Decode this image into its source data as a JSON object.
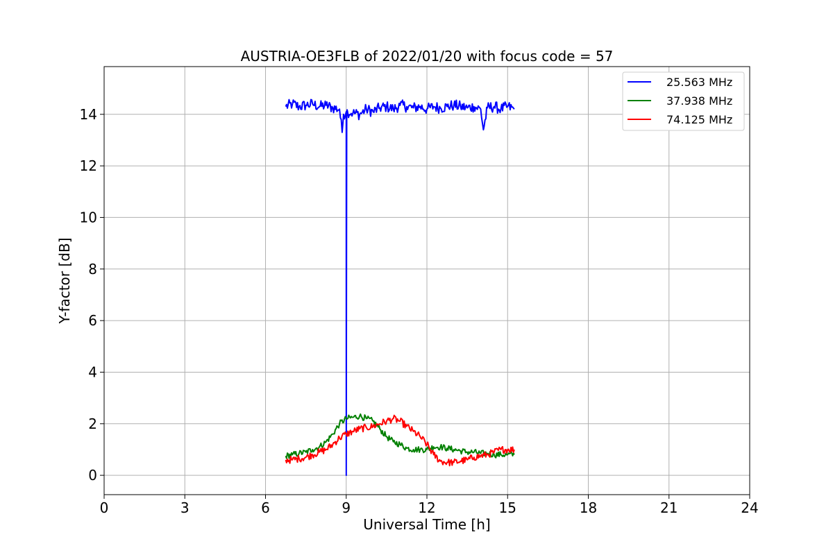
{
  "chart_data": {
    "type": "line",
    "title": "AUSTRIA-OE3FLB of 2022/01/20 with focus code = 57",
    "xlabel": "Universal Time [h]",
    "ylabel": "Y-factor [dB]",
    "xlim": [
      0,
      24
    ],
    "ylim": [
      -0.75,
      15.85
    ],
    "xticks": [
      0,
      3,
      6,
      9,
      12,
      15,
      18,
      21,
      24
    ],
    "yticks": [
      0,
      2,
      4,
      6,
      8,
      10,
      12,
      14
    ],
    "xtick_labels": [
      "0",
      "3",
      "6",
      "9",
      "12",
      "15",
      "18",
      "21",
      "24"
    ],
    "ytick_labels": [
      "0",
      "2",
      "4",
      "6",
      "8",
      "10",
      "12",
      "14"
    ],
    "grid": true,
    "legend_position": "top-right",
    "series": [
      {
        "name": "25.563 MHz",
        "color": "#0000ff",
        "x": [
          6.75,
          7.0,
          7.25,
          7.5,
          7.75,
          8.0,
          8.25,
          8.5,
          8.75,
          8.85,
          8.9,
          9.0,
          9.0,
          9.02,
          9.05,
          9.25,
          9.5,
          9.75,
          10.0,
          10.25,
          10.5,
          10.75,
          11.0,
          11.25,
          11.5,
          11.75,
          12.0,
          12.25,
          12.5,
          12.75,
          13.0,
          13.25,
          13.5,
          13.75,
          14.0,
          14.1,
          14.25,
          14.5,
          14.75,
          15.0,
          15.25
        ],
        "y": [
          14.3,
          14.4,
          14.3,
          14.35,
          14.4,
          14.3,
          14.35,
          14.25,
          14.2,
          13.3,
          14.0,
          14.1,
          0.0,
          14.1,
          14.1,
          14.05,
          14.0,
          14.2,
          14.1,
          14.25,
          14.3,
          14.2,
          14.35,
          14.3,
          14.25,
          14.3,
          14.2,
          14.3,
          14.25,
          14.3,
          14.35,
          14.3,
          14.25,
          14.3,
          14.2,
          13.4,
          14.25,
          14.3,
          14.2,
          14.3,
          14.2
        ]
      },
      {
        "name": "37.938 MHz",
        "color": "#008000",
        "x": [
          6.75,
          7.0,
          7.25,
          7.5,
          7.75,
          8.0,
          8.25,
          8.5,
          8.75,
          9.0,
          9.25,
          9.5,
          9.75,
          10.0,
          10.25,
          10.5,
          10.75,
          11.0,
          11.25,
          11.5,
          11.75,
          12.0,
          12.25,
          12.5,
          12.75,
          13.0,
          13.25,
          13.5,
          13.75,
          14.0,
          14.25,
          14.5,
          14.75,
          15.0,
          15.25
        ],
        "y": [
          0.75,
          0.8,
          0.85,
          0.9,
          1.0,
          1.1,
          1.3,
          1.6,
          2.0,
          2.2,
          2.25,
          2.3,
          2.2,
          2.1,
          1.8,
          1.5,
          1.3,
          1.2,
          1.05,
          1.0,
          1.0,
          1.0,
          1.1,
          1.1,
          1.05,
          1.0,
          0.95,
          0.9,
          0.9,
          0.85,
          0.85,
          0.8,
          0.8,
          0.8,
          0.8
        ]
      },
      {
        "name": "74.125 MHz",
        "color": "#ff0000",
        "x": [
          6.75,
          7.0,
          7.25,
          7.5,
          7.75,
          8.0,
          8.25,
          8.5,
          8.75,
          9.0,
          9.25,
          9.5,
          9.75,
          10.0,
          10.25,
          10.5,
          10.75,
          11.0,
          11.25,
          11.5,
          11.75,
          12.0,
          12.25,
          12.5,
          12.75,
          13.0,
          13.25,
          13.5,
          13.75,
          14.0,
          14.25,
          14.5,
          14.75,
          15.0,
          15.25
        ],
        "y": [
          0.6,
          0.6,
          0.65,
          0.7,
          0.8,
          0.9,
          1.0,
          1.2,
          1.45,
          1.6,
          1.7,
          1.8,
          1.85,
          1.9,
          2.0,
          2.1,
          2.2,
          2.1,
          1.9,
          1.7,
          1.5,
          1.2,
          0.8,
          0.55,
          0.5,
          0.5,
          0.55,
          0.6,
          0.7,
          0.75,
          0.8,
          0.9,
          1.0,
          1.0,
          1.0
        ]
      }
    ]
  }
}
